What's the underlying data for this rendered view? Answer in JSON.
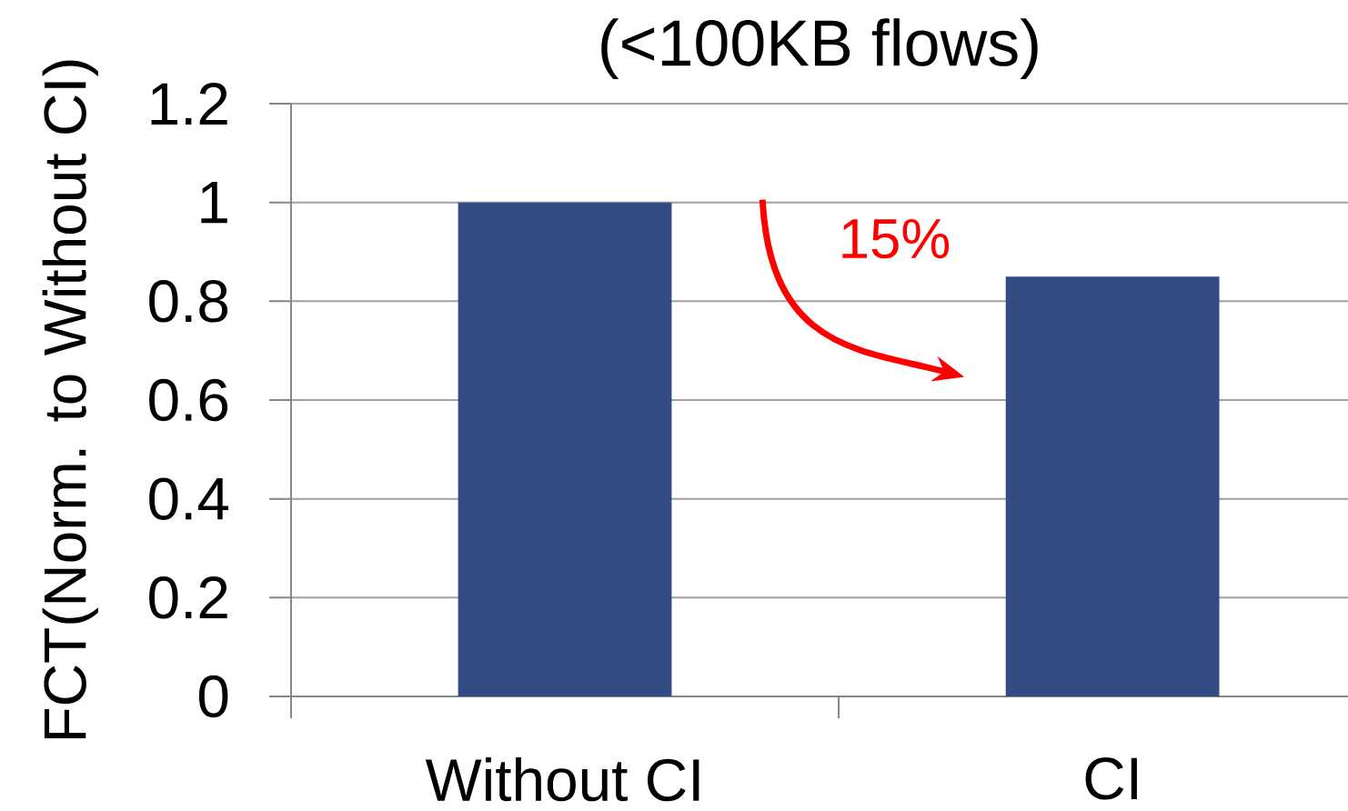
{
  "chart_data": {
    "type": "bar",
    "title": "(<100KB flows)",
    "ylabel": "FCT(Norm. to Without CI)",
    "categories": [
      "Without CI",
      "CI"
    ],
    "values": [
      1,
      0.85
    ],
    "color": "#334d84",
    "ylim": [
      0,
      1.2
    ],
    "yticks": [
      0,
      0.2,
      0.4,
      0.6,
      0.8,
      1,
      1.2
    ],
    "grid": "y",
    "annotations": [
      "15%"
    ]
  }
}
